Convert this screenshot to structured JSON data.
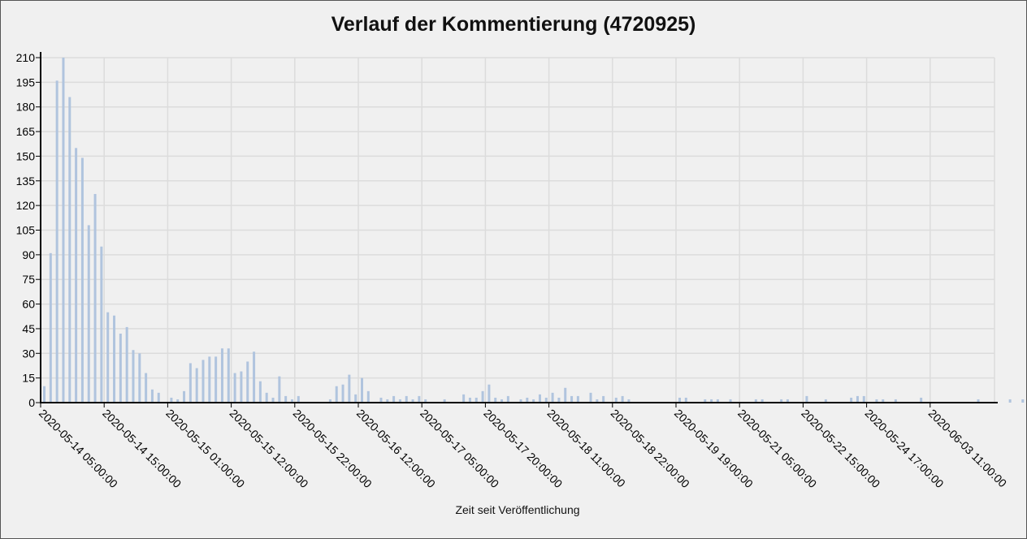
{
  "chart_data": {
    "type": "bar",
    "title": "Verlauf der Kommentierung (4720925)",
    "xlabel": "Zeit seit Veröffentlichung",
    "ylabel": "",
    "ylim": [
      0,
      210
    ],
    "yticks": [
      0,
      15,
      30,
      45,
      60,
      75,
      90,
      105,
      120,
      135,
      150,
      165,
      180,
      195,
      210
    ],
    "grid": true,
    "bar_color": "#b0c4de",
    "xtick_labels": [
      "2020-05-14 05:00:00",
      "2020-05-14 15:00:00",
      "2020-05-15 01:00:00",
      "2020-05-15 12:00:00",
      "2020-05-15 22:00:00",
      "2020-05-16 12:00:00",
      "2020-05-17 05:00:00",
      "2020-05-17 20:00:00",
      "2020-05-18 11:00:00",
      "2020-05-18 22:00:00",
      "2020-05-19 19:00:00",
      "2020-05-21 05:00:00",
      "2020-05-22 15:00:00",
      "2020-05-24 17:00:00",
      "2020-06-03 11:00:00"
    ],
    "values": [
      10,
      91,
      196,
      210,
      186,
      155,
      149,
      108,
      127,
      95,
      55,
      53,
      42,
      46,
      32,
      30,
      18,
      8,
      6,
      0,
      3,
      2,
      7,
      24,
      21,
      26,
      28,
      28,
      33,
      33,
      18,
      19,
      25,
      31,
      13,
      6,
      3,
      16,
      4,
      2,
      4,
      0,
      0,
      0,
      0,
      2,
      10,
      11,
      17,
      5,
      15,
      7,
      0,
      3,
      2,
      4,
      2,
      4,
      2,
      4,
      2,
      0,
      0,
      2,
      0,
      0,
      5,
      3,
      3,
      7,
      11,
      3,
      2,
      4,
      0,
      2,
      3,
      2,
      5,
      3,
      6,
      3,
      9,
      4,
      4,
      0,
      6,
      2,
      4,
      0,
      3,
      4,
      2,
      0,
      0,
      0,
      0,
      0,
      0,
      0,
      3,
      3,
      0,
      0,
      2,
      2,
      2,
      0,
      2,
      0,
      0,
      0,
      2,
      2,
      0,
      0,
      2,
      2,
      0,
      0,
      4,
      0,
      0,
      2,
      0,
      0,
      0,
      3,
      4,
      4,
      0,
      2,
      2,
      0,
      2,
      0,
      0,
      0,
      3,
      0,
      0,
      0,
      0,
      0,
      0,
      0,
      0,
      2,
      0,
      0,
      0,
      0,
      2,
      0,
      2
    ]
  }
}
